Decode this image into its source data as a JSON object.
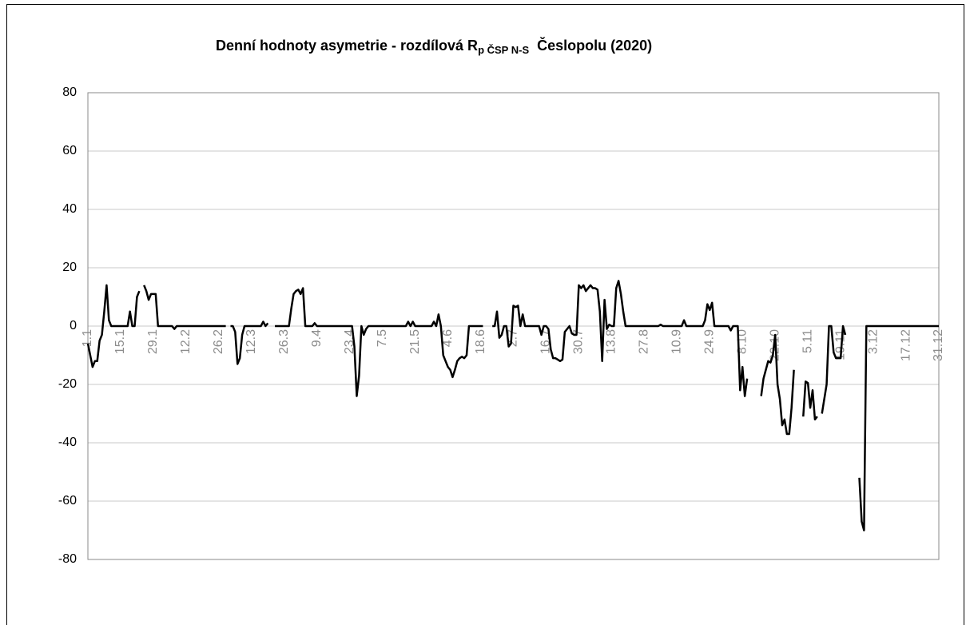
{
  "chart_data": {
    "type": "line",
    "title": [
      "Denní hodnoty asymetrie - rozdílová R",
      "p ČSP N-S",
      "Česlopolu (2020)"
    ],
    "categories": [
      "1.1",
      null,
      null,
      null,
      null,
      null,
      null,
      null,
      null,
      null,
      null,
      null,
      null,
      null,
      "15.1",
      null,
      null,
      null,
      null,
      null,
      null,
      null,
      null,
      null,
      null,
      null,
      null,
      null,
      "29.1",
      null,
      null,
      null,
      null,
      null,
      null,
      null,
      null,
      null,
      null,
      null,
      null,
      null,
      "12.2",
      null,
      null,
      null,
      null,
      null,
      null,
      null,
      null,
      null,
      null,
      null,
      null,
      null,
      "26.2",
      null,
      null,
      null,
      null,
      null,
      null,
      null,
      null,
      null,
      null,
      null,
      null,
      null,
      "12.3",
      null,
      null,
      null,
      null,
      null,
      null,
      null,
      null,
      null,
      null,
      null,
      null,
      null,
      "26.3",
      null,
      null,
      null,
      null,
      null,
      null,
      null,
      null,
      null,
      null,
      null,
      null,
      null,
      "9.4",
      null,
      null,
      null,
      null,
      null,
      null,
      null,
      null,
      null,
      null,
      null,
      null,
      null,
      "23.4",
      null,
      null,
      null,
      null,
      null,
      null,
      null,
      null,
      null,
      null,
      null,
      null,
      null,
      "7.5",
      null,
      null,
      null,
      null,
      null,
      null,
      null,
      null,
      null,
      null,
      null,
      null,
      null,
      "21.5",
      null,
      null,
      null,
      null,
      null,
      null,
      null,
      null,
      null,
      null,
      null,
      null,
      null,
      "4.6",
      null,
      null,
      null,
      null,
      null,
      null,
      null,
      null,
      null,
      null,
      null,
      null,
      null,
      "18.6",
      null,
      null,
      null,
      null,
      null,
      null,
      null,
      null,
      null,
      null,
      null,
      null,
      null,
      "2.7",
      null,
      null,
      null,
      null,
      null,
      null,
      null,
      null,
      null,
      null,
      null,
      null,
      null,
      "16.7",
      null,
      null,
      null,
      null,
      null,
      null,
      null,
      null,
      null,
      null,
      null,
      null,
      null,
      "30.7",
      null,
      null,
      null,
      null,
      null,
      null,
      null,
      null,
      null,
      null,
      null,
      null,
      null,
      "13.8",
      null,
      null,
      null,
      null,
      null,
      null,
      null,
      null,
      null,
      null,
      null,
      null,
      null,
      "27.8",
      null,
      null,
      null,
      null,
      null,
      null,
      null,
      null,
      null,
      null,
      null,
      null,
      null,
      "10.9",
      null,
      null,
      null,
      null,
      null,
      null,
      null,
      null,
      null,
      null,
      null,
      null,
      null,
      "24.9",
      null,
      null,
      null,
      null,
      null,
      null,
      null,
      null,
      null,
      null,
      null,
      null,
      null,
      "8.10",
      null,
      null,
      null,
      null,
      null,
      null,
      null,
      null,
      null,
      null,
      null,
      null,
      null,
      "22.10",
      null,
      null,
      null,
      null,
      null,
      null,
      null,
      null,
      null,
      null,
      null,
      null,
      null,
      "5.11",
      null,
      null,
      null,
      null,
      null,
      null,
      null,
      null,
      null,
      null,
      null,
      null,
      null,
      "19.11",
      null,
      null,
      null,
      null,
      null,
      null,
      null,
      null,
      null,
      null,
      null,
      null,
      null,
      "3.12",
      null,
      null,
      null,
      null,
      null,
      null,
      null,
      null,
      null,
      null,
      null,
      null,
      null,
      "17.12",
      null,
      null,
      null,
      null,
      null,
      null,
      null,
      null,
      null,
      null,
      null,
      null,
      null,
      "31.12"
    ],
    "series": [
      {
        "color": "#000000",
        "values": [
          -6,
          -10,
          -14,
          -12,
          -12,
          -5,
          -3,
          5,
          14,
          2,
          0,
          0,
          0,
          0,
          0,
          0,
          0,
          0,
          5,
          0,
          0,
          10,
          12,
          null,
          14,
          12,
          9,
          11,
          11,
          11,
          0,
          0,
          0,
          0,
          0,
          0,
          0,
          -1,
          0,
          0,
          0,
          0,
          0,
          0,
          0,
          0,
          0,
          0,
          0,
          0,
          0,
          0,
          0,
          0,
          0,
          0,
          0,
          0,
          0,
          0,
          null,
          0,
          0,
          -2,
          -13,
          -11,
          -3,
          0,
          0,
          0,
          0,
          0,
          0,
          0,
          0,
          1.5,
          0,
          1,
          null,
          null,
          0,
          0,
          0,
          0,
          0,
          0,
          0,
          6,
          11,
          12,
          12.5,
          11,
          13,
          0,
          0,
          0,
          0,
          1,
          0,
          0,
          0,
          0,
          0,
          0,
          0,
          0,
          0,
          0,
          0,
          0,
          0,
          0,
          0,
          0,
          -7,
          -24,
          -17,
          0,
          -3,
          -1,
          0,
          0,
          0,
          0,
          0,
          0,
          0,
          0,
          0,
          0,
          0,
          0,
          0,
          0,
          0,
          0,
          0,
          1.5,
          0,
          1.5,
          0,
          0,
          0,
          0,
          0,
          0,
          0,
          0,
          1.5,
          0,
          4,
          0,
          -10,
          -12,
          -14,
          -15,
          -17.5,
          -15,
          -12,
          -11,
          -10.5,
          -11,
          -10,
          0,
          0,
          0,
          0,
          0,
          0,
          0,
          null,
          null,
          null,
          0,
          0,
          5,
          -4,
          -3,
          0,
          0,
          -7,
          -6,
          7,
          6.5,
          7,
          0,
          4,
          0,
          0,
          0,
          0,
          0,
          0,
          0,
          -3,
          0,
          0,
          -1,
          -8,
          -11,
          -11,
          -11.5,
          -12,
          -11.5,
          -2,
          -1,
          0,
          -2.5,
          -3,
          -3,
          14,
          13,
          14,
          12,
          13,
          14,
          13,
          13,
          12.5,
          5,
          -12,
          9,
          -1,
          0.5,
          0,
          0,
          13,
          15.5,
          11,
          5,
          0,
          0,
          0,
          0,
          0,
          0,
          0,
          0,
          0,
          0,
          0,
          0,
          0,
          0,
          0,
          0.5,
          0,
          0,
          0,
          0,
          0,
          0,
          0,
          0,
          0,
          2,
          0,
          0,
          0,
          0,
          0,
          0,
          0,
          0,
          2,
          7.5,
          5.5,
          8,
          0,
          0,
          0,
          0,
          0,
          0,
          0,
          -1.5,
          0,
          0,
          0,
          -22,
          -14,
          -24,
          -18,
          null,
          null,
          null,
          null,
          null,
          -24,
          -18,
          -15,
          -12,
          -12.5,
          -10,
          -3,
          -20,
          -25,
          -34,
          -32,
          -37,
          -37,
          -28,
          -15,
          null,
          null,
          null,
          -31,
          -19,
          -19.5,
          -28,
          -22,
          -32,
          -31,
          null,
          -30,
          -25,
          -20,
          0,
          0,
          -9,
          -11,
          -11,
          -11,
          0,
          -3,
          null,
          null,
          null,
          null,
          null,
          -52,
          -67,
          -70,
          0,
          0,
          0,
          0,
          0,
          0,
          0,
          0,
          0,
          0,
          0,
          0,
          0,
          0,
          0,
          0,
          0,
          0,
          0,
          0,
          0,
          0,
          0,
          0,
          0,
          0,
          0,
          0,
          0,
          0,
          0,
          0
        ]
      }
    ],
    "ylim": [
      -80,
      80
    ],
    "yticks": [
      -80,
      -60,
      -40,
      -20,
      0,
      20,
      40,
      60,
      80
    ],
    "grid": true
  }
}
